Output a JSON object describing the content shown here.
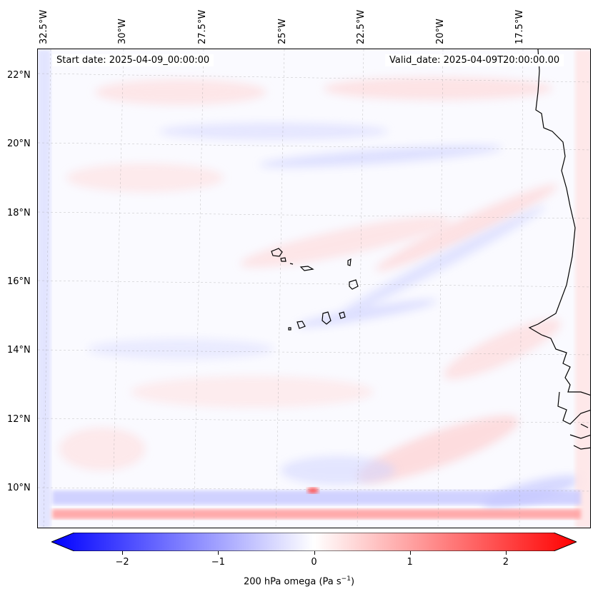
{
  "map": {
    "start_label": "Start date: 2025-04-09_00:00:00",
    "valid_label": "Valid_date: 2025-04-09T20:00:00.00",
    "lon_labels": [
      "32.5°W",
      "30°W",
      "27.5°W",
      "25°W",
      "22.5°W",
      "20°W",
      "17.5°W"
    ],
    "lat_labels": [
      "22°N",
      "20°N",
      "18°N",
      "16°N",
      "14°N",
      "12°N",
      "10°N"
    ]
  },
  "colorbar": {
    "min": -2.5,
    "max": 2.5,
    "ticks": [
      "−2",
      "−1",
      "0",
      "1",
      "2"
    ],
    "tick_values": [
      -2,
      -1,
      0,
      1,
      2
    ],
    "title": "200 hPa omega (Pa s",
    "title_sup": "−1",
    "title_end": ")",
    "negative_color": "#0000ff",
    "positive_color": "#ff0000"
  }
}
